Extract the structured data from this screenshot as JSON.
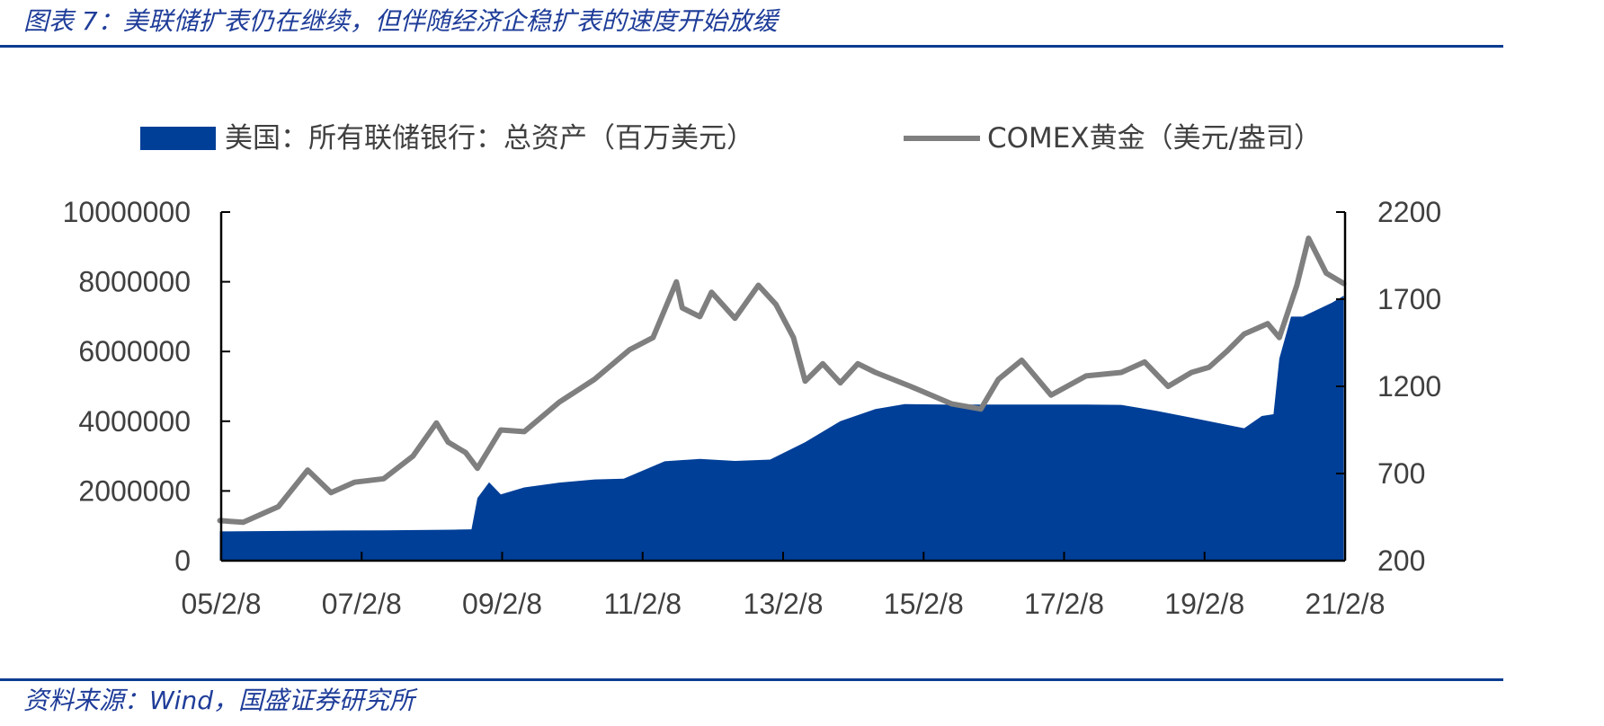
{
  "header": {
    "title": "图表 7：美联储扩表仍在继续，但伴随经济企稳扩表的速度开始放缓"
  },
  "footer": {
    "source": "资料来源：Wind，国盛证券研究所"
  },
  "colors": {
    "primary_series": "#003f98",
    "secondary_series": "#7f7f7f",
    "rule": "#0a3d91",
    "title_text": "#1f3d99"
  },
  "chart_data": {
    "type": "area",
    "x_tick_labels": [
      "05/2/8",
      "07/2/8",
      "09/2/8",
      "11/2/8",
      "13/2/8",
      "15/2/8",
      "17/2/8",
      "19/2/8",
      "21/2/8"
    ],
    "x_range": [
      "2005-02-08",
      "2021-02-08"
    ],
    "left_axis": {
      "range": [
        0,
        10000000
      ],
      "ticks": [
        0,
        2000000,
        4000000,
        6000000,
        8000000,
        10000000
      ],
      "tick_labels": [
        "0",
        "2000000",
        "4000000",
        "6000000",
        "8000000",
        "10000000"
      ]
    },
    "right_axis": {
      "range": [
        200,
        2200
      ],
      "ticks": [
        200,
        700,
        1200,
        1700,
        2200
      ],
      "tick_labels": [
        "200",
        "700",
        "1200",
        "1700",
        "2200"
      ]
    },
    "legend_position": "top",
    "grid": false,
    "series": [
      {
        "name": "美国：所有联储银行：总资产（百万美元）",
        "type": "area",
        "axis": "left",
        "x": [
          "2005-02",
          "2006-06",
          "2007-06",
          "2008-06",
          "2008-09",
          "2008-10",
          "2008-12",
          "2009-02",
          "2009-06",
          "2009-12",
          "2010-06",
          "2010-11",
          "2011-06",
          "2011-12",
          "2012-06",
          "2012-12",
          "2013-06",
          "2013-12",
          "2014-06",
          "2014-11",
          "2015-06",
          "2016-06",
          "2017-06",
          "2017-12",
          "2018-06",
          "2018-12",
          "2019-06",
          "2019-09",
          "2019-12",
          "2020-02",
          "2020-03",
          "2020-05",
          "2020-07",
          "2020-12",
          "2021-02"
        ],
        "values": [
          840000,
          860000,
          870000,
          890000,
          900000,
          1800000,
          2250000,
          1900000,
          2100000,
          2240000,
          2330000,
          2350000,
          2850000,
          2920000,
          2860000,
          2900000,
          3400000,
          4000000,
          4350000,
          4490000,
          4480000,
          4480000,
          4480000,
          4470000,
          4300000,
          4100000,
          3900000,
          3800000,
          4150000,
          4200000,
          5800000,
          7000000,
          7000000,
          7400000,
          7600000
        ]
      },
      {
        "name": "COMEX黄金（美元/盎司）",
        "type": "line",
        "axis": "right",
        "x": [
          "2005-02",
          "2005-06",
          "2005-12",
          "2006-05",
          "2006-09",
          "2007-01",
          "2007-06",
          "2007-11",
          "2008-03",
          "2008-05",
          "2008-08",
          "2008-10",
          "2009-02",
          "2009-06",
          "2009-12",
          "2010-06",
          "2010-12",
          "2011-04",
          "2011-08",
          "2011-09",
          "2011-12",
          "2012-02",
          "2012-06",
          "2012-10",
          "2013-01",
          "2013-04",
          "2013-06",
          "2013-09",
          "2013-12",
          "2014-03",
          "2014-06",
          "2014-12",
          "2015-07",
          "2015-12",
          "2016-03",
          "2016-07",
          "2016-12",
          "2017-06",
          "2017-12",
          "2018-04",
          "2018-08",
          "2018-12",
          "2019-03",
          "2019-06",
          "2019-09",
          "2020-01",
          "2020-03",
          "2020-06",
          "2020-08",
          "2020-11",
          "2021-02"
        ],
        "values": [
          430,
          420,
          510,
          720,
          590,
          650,
          670,
          800,
          990,
          880,
          820,
          730,
          950,
          940,
          1110,
          1240,
          1410,
          1480,
          1800,
          1650,
          1600,
          1740,
          1590,
          1780,
          1670,
          1480,
          1230,
          1330,
          1220,
          1330,
          1280,
          1200,
          1100,
          1070,
          1240,
          1350,
          1150,
          1260,
          1280,
          1340,
          1200,
          1280,
          1310,
          1400,
          1500,
          1560,
          1480,
          1780,
          2050,
          1850,
          1790
        ]
      }
    ]
  }
}
